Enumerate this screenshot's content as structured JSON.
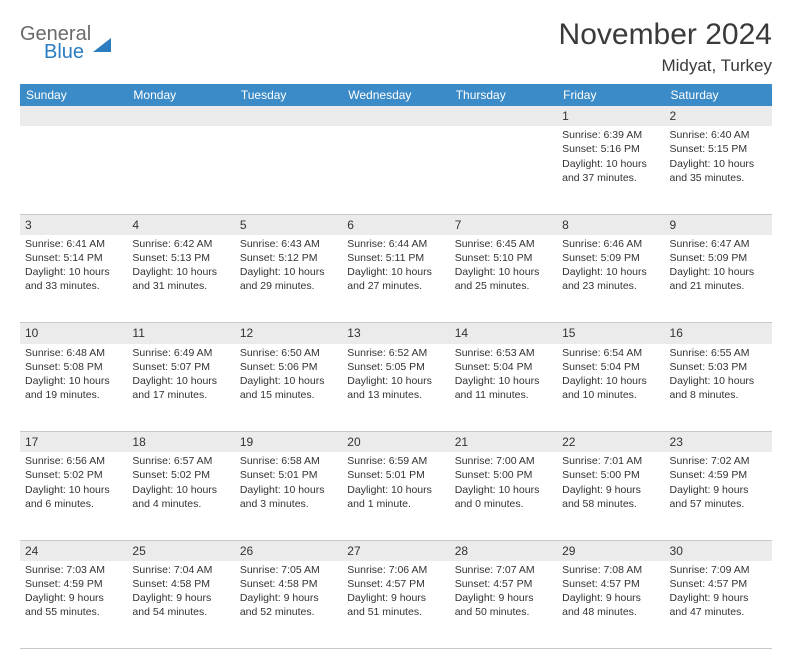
{
  "logo": {
    "top": "General",
    "bottom": "Blue"
  },
  "title": "November 2024",
  "subtitle": "Midyat, Turkey",
  "colors": {
    "header_bg": "#3b8bc8",
    "header_text": "#ffffff",
    "daynum_bg": "#ebebeb",
    "border": "#c9c9c9",
    "text": "#333333",
    "logo_gray": "#6a6a6a",
    "logo_blue": "#2b7cc0"
  },
  "daysOfWeek": [
    "Sunday",
    "Monday",
    "Tuesday",
    "Wednesday",
    "Thursday",
    "Friday",
    "Saturday"
  ],
  "weeks": [
    {
      "nums": [
        "",
        "",
        "",
        "",
        "",
        "1",
        "2"
      ],
      "cells": [
        null,
        null,
        null,
        null,
        null,
        {
          "sunrise": "6:39 AM",
          "sunset": "5:16 PM",
          "daylight": "10 hours and 37 minutes."
        },
        {
          "sunrise": "6:40 AM",
          "sunset": "5:15 PM",
          "daylight": "10 hours and 35 minutes."
        }
      ]
    },
    {
      "nums": [
        "3",
        "4",
        "5",
        "6",
        "7",
        "8",
        "9"
      ],
      "cells": [
        {
          "sunrise": "6:41 AM",
          "sunset": "5:14 PM",
          "daylight": "10 hours and 33 minutes."
        },
        {
          "sunrise": "6:42 AM",
          "sunset": "5:13 PM",
          "daylight": "10 hours and 31 minutes."
        },
        {
          "sunrise": "6:43 AM",
          "sunset": "5:12 PM",
          "daylight": "10 hours and 29 minutes."
        },
        {
          "sunrise": "6:44 AM",
          "sunset": "5:11 PM",
          "daylight": "10 hours and 27 minutes."
        },
        {
          "sunrise": "6:45 AM",
          "sunset": "5:10 PM",
          "daylight": "10 hours and 25 minutes."
        },
        {
          "sunrise": "6:46 AM",
          "sunset": "5:09 PM",
          "daylight": "10 hours and 23 minutes."
        },
        {
          "sunrise": "6:47 AM",
          "sunset": "5:09 PM",
          "daylight": "10 hours and 21 minutes."
        }
      ]
    },
    {
      "nums": [
        "10",
        "11",
        "12",
        "13",
        "14",
        "15",
        "16"
      ],
      "cells": [
        {
          "sunrise": "6:48 AM",
          "sunset": "5:08 PM",
          "daylight": "10 hours and 19 minutes."
        },
        {
          "sunrise": "6:49 AM",
          "sunset": "5:07 PM",
          "daylight": "10 hours and 17 minutes."
        },
        {
          "sunrise": "6:50 AM",
          "sunset": "5:06 PM",
          "daylight": "10 hours and 15 minutes."
        },
        {
          "sunrise": "6:52 AM",
          "sunset": "5:05 PM",
          "daylight": "10 hours and 13 minutes."
        },
        {
          "sunrise": "6:53 AM",
          "sunset": "5:04 PM",
          "daylight": "10 hours and 11 minutes."
        },
        {
          "sunrise": "6:54 AM",
          "sunset": "5:04 PM",
          "daylight": "10 hours and 10 minutes."
        },
        {
          "sunrise": "6:55 AM",
          "sunset": "5:03 PM",
          "daylight": "10 hours and 8 minutes."
        }
      ]
    },
    {
      "nums": [
        "17",
        "18",
        "19",
        "20",
        "21",
        "22",
        "23"
      ],
      "cells": [
        {
          "sunrise": "6:56 AM",
          "sunset": "5:02 PM",
          "daylight": "10 hours and 6 minutes."
        },
        {
          "sunrise": "6:57 AM",
          "sunset": "5:02 PM",
          "daylight": "10 hours and 4 minutes."
        },
        {
          "sunrise": "6:58 AM",
          "sunset": "5:01 PM",
          "daylight": "10 hours and 3 minutes."
        },
        {
          "sunrise": "6:59 AM",
          "sunset": "5:01 PM",
          "daylight": "10 hours and 1 minute."
        },
        {
          "sunrise": "7:00 AM",
          "sunset": "5:00 PM",
          "daylight": "10 hours and 0 minutes."
        },
        {
          "sunrise": "7:01 AM",
          "sunset": "5:00 PM",
          "daylight": "9 hours and 58 minutes."
        },
        {
          "sunrise": "7:02 AM",
          "sunset": "4:59 PM",
          "daylight": "9 hours and 57 minutes."
        }
      ]
    },
    {
      "nums": [
        "24",
        "25",
        "26",
        "27",
        "28",
        "29",
        "30"
      ],
      "cells": [
        {
          "sunrise": "7:03 AM",
          "sunset": "4:59 PM",
          "daylight": "9 hours and 55 minutes."
        },
        {
          "sunrise": "7:04 AM",
          "sunset": "4:58 PM",
          "daylight": "9 hours and 54 minutes."
        },
        {
          "sunrise": "7:05 AM",
          "sunset": "4:58 PM",
          "daylight": "9 hours and 52 minutes."
        },
        {
          "sunrise": "7:06 AM",
          "sunset": "4:57 PM",
          "daylight": "9 hours and 51 minutes."
        },
        {
          "sunrise": "7:07 AM",
          "sunset": "4:57 PM",
          "daylight": "9 hours and 50 minutes."
        },
        {
          "sunrise": "7:08 AM",
          "sunset": "4:57 PM",
          "daylight": "9 hours and 48 minutes."
        },
        {
          "sunrise": "7:09 AM",
          "sunset": "4:57 PM",
          "daylight": "9 hours and 47 minutes."
        }
      ]
    }
  ],
  "labels": {
    "sunrise": "Sunrise:",
    "sunset": "Sunset:",
    "daylight": "Daylight:"
  }
}
